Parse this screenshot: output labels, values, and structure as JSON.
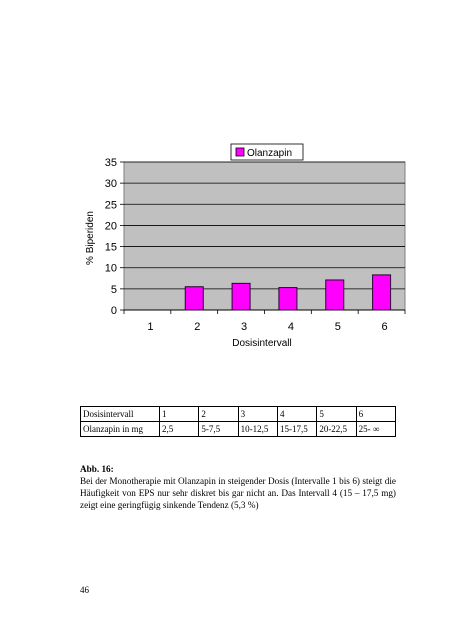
{
  "chart_data": {
    "type": "bar",
    "categories": [
      "1",
      "2",
      "3",
      "4",
      "5",
      "6"
    ],
    "series": [
      {
        "name": "Olanzapin",
        "values": [
          0,
          5.5,
          6.3,
          5.3,
          7.1,
          8.3
        ]
      }
    ],
    "title": "",
    "xlabel": "Dosisintervall",
    "ylabel": "% Biperiden",
    "ylim": [
      0,
      35
    ],
    "yticks": [
      0,
      5,
      10,
      15,
      20,
      25,
      30,
      35
    ],
    "grid": true,
    "legend": "top-right",
    "colors": {
      "bar": "#ff00ff",
      "bar_edge": "#2a0033",
      "plot_bg": "#c0c0c0",
      "frame": "#808080"
    }
  },
  "table": {
    "rows": [
      [
        "Dosisintervall",
        "1",
        "2",
        "3",
        "4",
        "5",
        "6"
      ],
      [
        "Olanzapin in mg",
        "2,5",
        "5-7,5",
        "10-12,5",
        "15-17,5",
        "20-22,5",
        "25- ∞"
      ]
    ]
  },
  "caption": {
    "title": "Abb. 16:",
    "text": "Bei der Monotherapie mit Olanzapin in steigender Dosis (Intervalle 1 bis 6) steigt die Häufigkeit von EPS nur sehr diskret bis gar nicht an. Das Intervall 4 (15 – 17,5 mg) zeigt eine geringfügig sinkende Tendenz (5,3 %)"
  },
  "page_number": "46"
}
